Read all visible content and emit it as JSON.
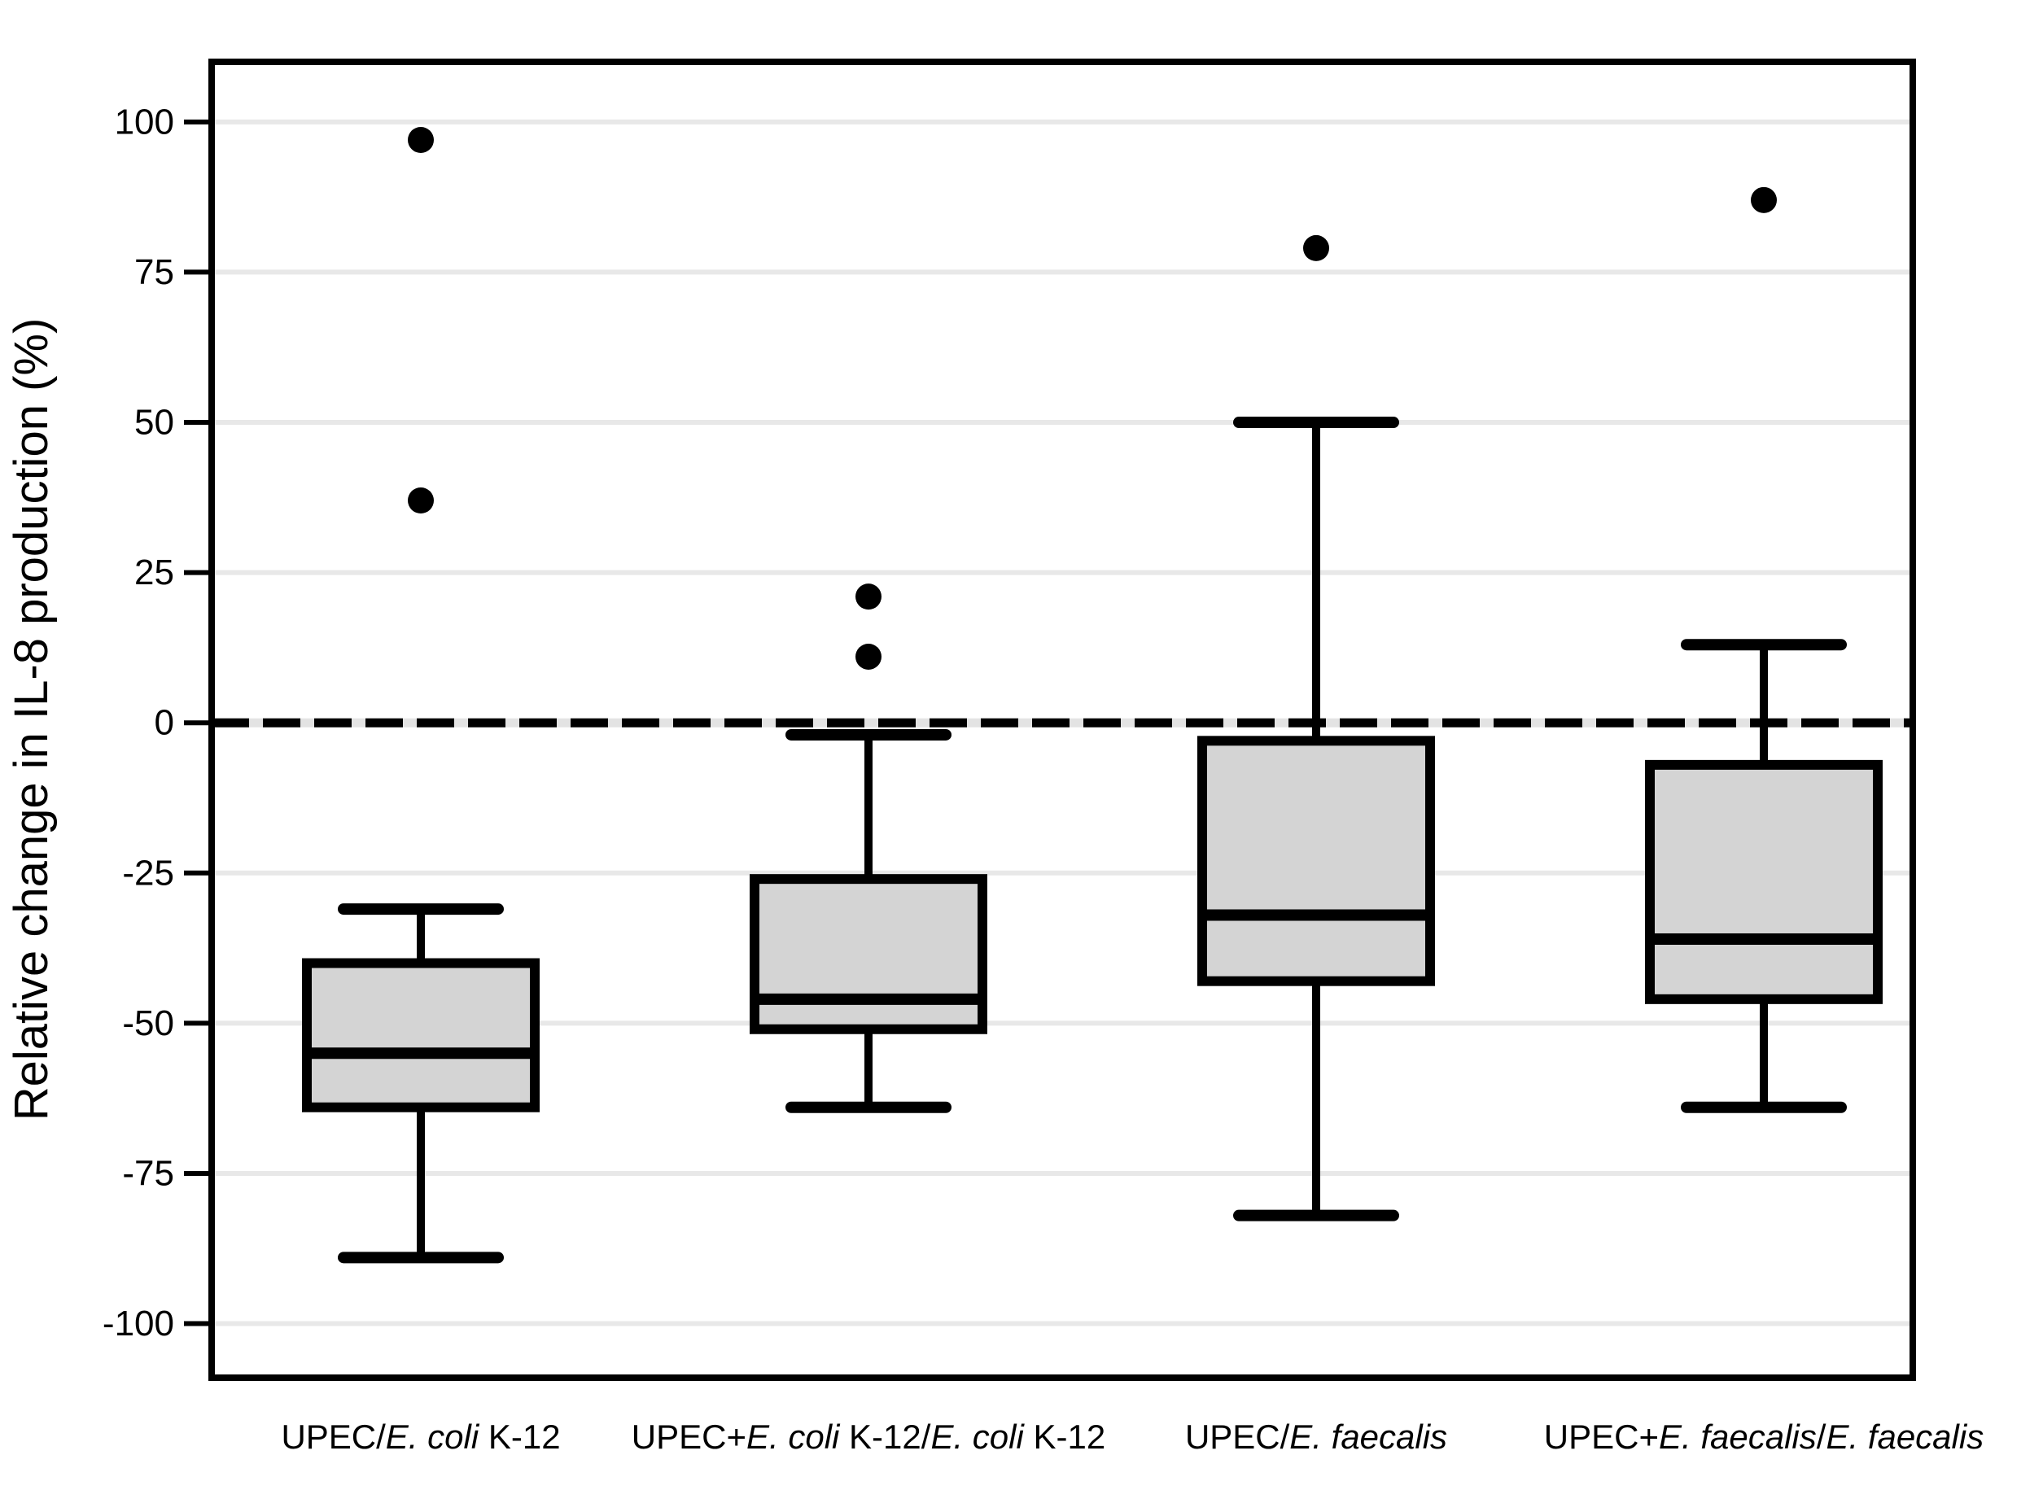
{
  "chart_data": {
    "type": "boxplot",
    "title": "",
    "xlabel": "",
    "ylabel": "Relative change in IL-8 production (%)",
    "ylim": [
      -109,
      110
    ],
    "yticks": [
      100,
      75,
      50,
      25,
      0,
      -25,
      -50,
      -75,
      -100
    ],
    "grid": "horizontal",
    "reference_line": 0,
    "colors": {
      "box_fill": "#d4d4d4",
      "line": "#000000",
      "gridline": "#e8e8e8",
      "zero_gap": "#e3e3e3",
      "background": "#ffffff"
    },
    "categories": [
      {
        "label": "UPEC/E. coli K-12",
        "label_segments": [
          {
            "text": "UPEC/",
            "italic": false
          },
          {
            "text": "E. coli",
            "italic": true
          },
          {
            "text": " K-12",
            "italic": false
          }
        ],
        "whisker_low": -89,
        "q1": -64,
        "median": -55,
        "q3": -40,
        "whisker_high": -31,
        "outliers": [
          37,
          97
        ]
      },
      {
        "label": "UPEC+E. coli K-12/E. coli K-12",
        "label_segments": [
          {
            "text": "UPEC+",
            "italic": false
          },
          {
            "text": "E. coli",
            "italic": true
          },
          {
            "text": " K-12/",
            "italic": false
          },
          {
            "text": "E. coli",
            "italic": true
          },
          {
            "text": " K-12",
            "italic": false
          }
        ],
        "whisker_low": -64,
        "q1": -51,
        "median": -46,
        "q3": -26,
        "whisker_high": -2,
        "outliers": [
          11,
          21
        ]
      },
      {
        "label": "UPEC/E. faecalis",
        "label_segments": [
          {
            "text": "UPEC/",
            "italic": false
          },
          {
            "text": "E. faecalis",
            "italic": true
          }
        ],
        "whisker_low": -82,
        "q1": -43,
        "median": -32,
        "q3": -3,
        "whisker_high": 50,
        "outliers": [
          79
        ]
      },
      {
        "label": "UPEC+E. faecalis/E. faecalis",
        "label_segments": [
          {
            "text": "UPEC+",
            "italic": false
          },
          {
            "text": "E. faecalis",
            "italic": true
          },
          {
            "text": "/",
            "italic": false
          },
          {
            "text": "E. faecalis",
            "italic": true
          }
        ],
        "whisker_low": -64,
        "q1": -46,
        "median": -36,
        "q3": -7,
        "whisker_high": 13,
        "outliers": [
          87
        ]
      }
    ]
  }
}
